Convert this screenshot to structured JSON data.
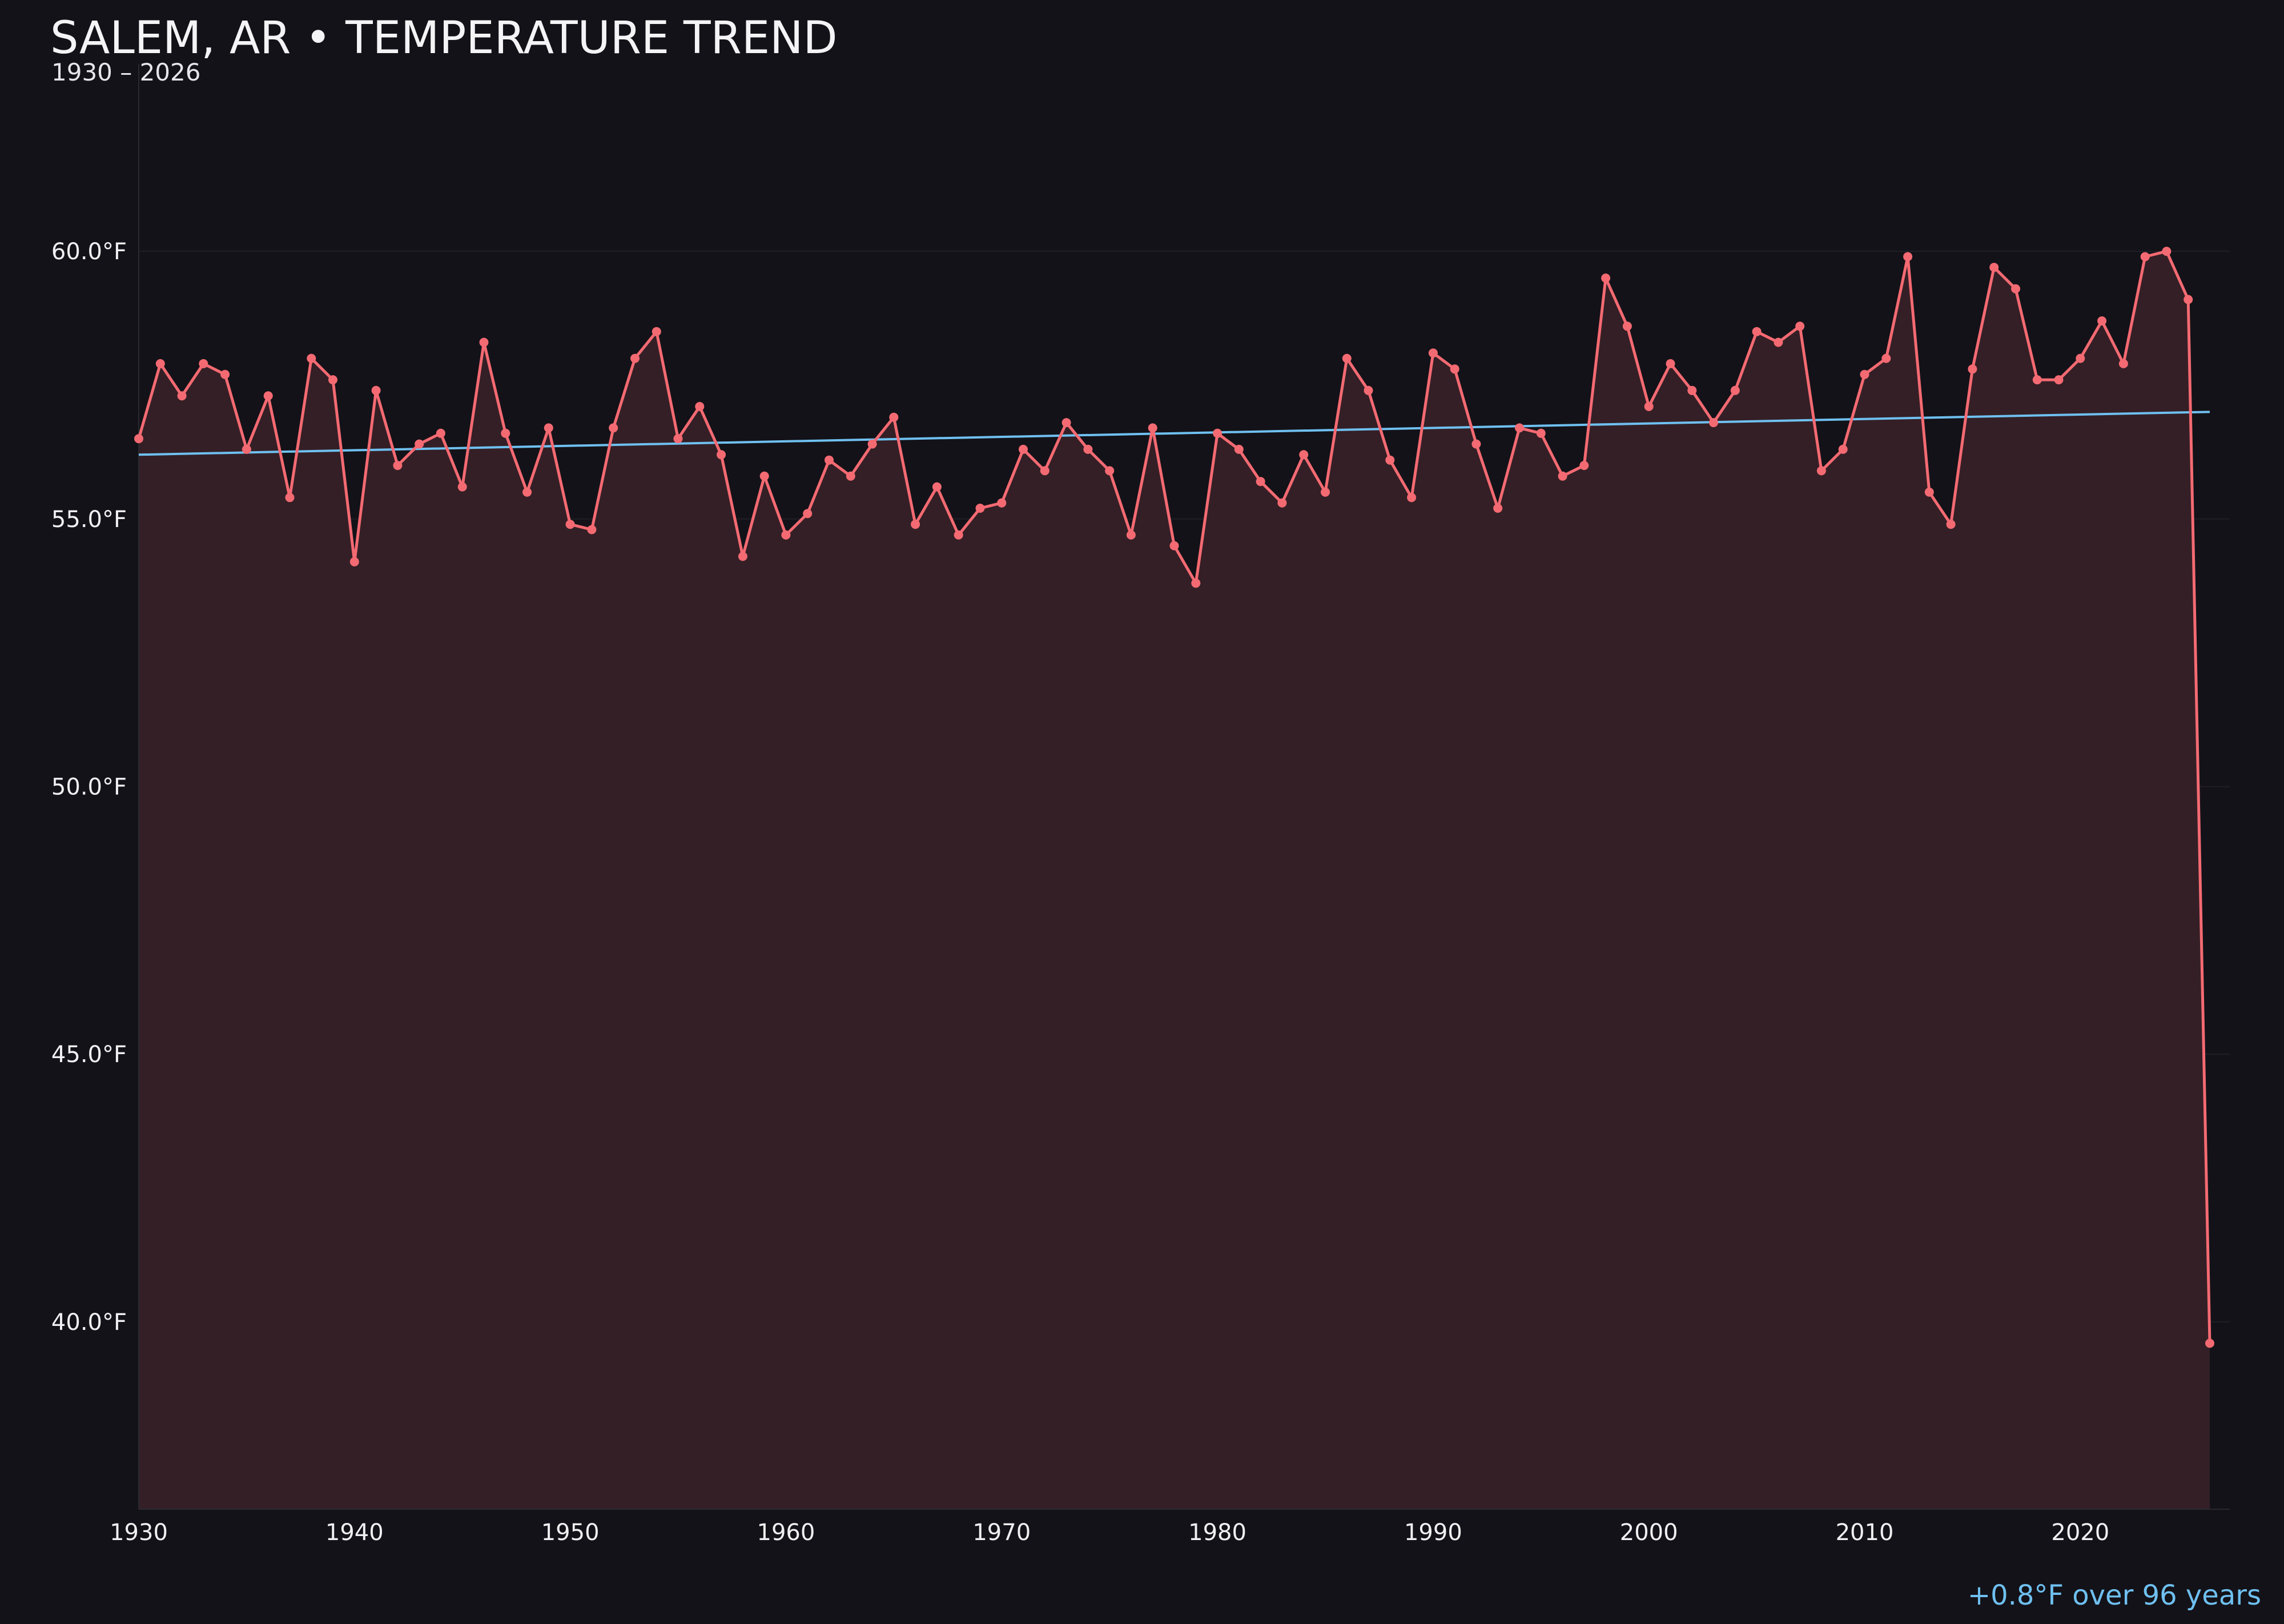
{
  "header": {
    "title": "SALEM, AR • TEMPERATURE TREND",
    "subtitle": "1930 – 2026"
  },
  "footnote": "+0.8°F over 96 years",
  "colors": {
    "background": "#131218",
    "series": "#f46a72",
    "area_fill": "#341f26",
    "trend": "#6fc0f0",
    "grid": "#201f25",
    "text": "#f0f0f2"
  },
  "chart_data": {
    "type": "line",
    "title": "SALEM, AR • TEMPERATURE TREND",
    "subtitle": "1930 – 2026",
    "xlabel": "",
    "ylabel": "",
    "xlim": [
      1930,
      2026
    ],
    "ylim": [
      36.5,
      63.5
    ],
    "x_ticks": [
      1930,
      1940,
      1950,
      1960,
      1970,
      1980,
      1990,
      2000,
      2010,
      2020
    ],
    "y_ticks": [
      40,
      45,
      50,
      55,
      60
    ],
    "y_tick_labels": [
      "40.0°F",
      "45.0°F",
      "50.0°F",
      "55.0°F",
      "60.0°F"
    ],
    "grid": "horizontal",
    "series": [
      {
        "x": [
          1930,
          1931,
          1932,
          1933,
          1934,
          1935,
          1936,
          1937,
          1938,
          1939,
          1940,
          1941,
          1942,
          1943,
          1944,
          1945,
          1946,
          1947,
          1948,
          1949,
          1950,
          1951,
          1952,
          1953,
          1954,
          1955,
          1956,
          1957,
          1958,
          1959,
          1960,
          1961,
          1962,
          1963,
          1964,
          1965,
          1966,
          1967,
          1968,
          1969,
          1970,
          1971,
          1972,
          1973,
          1974,
          1975,
          1976,
          1977,
          1978,
          1979,
          1980,
          1981,
          1982,
          1983,
          1984,
          1985,
          1986,
          1987,
          1988,
          1989,
          1990,
          1991,
          1992,
          1993,
          1994,
          1995,
          1996,
          1997,
          1998,
          1999,
          2000,
          2001,
          2002,
          2003,
          2004,
          2005,
          2006,
          2007,
          2008,
          2009,
          2010,
          2011,
          2012,
          2013,
          2014,
          2015,
          2016,
          2017,
          2018,
          2019,
          2020,
          2021,
          2022,
          2023,
          2024,
          2025,
          2026
        ],
        "values": [
          56.5,
          57.9,
          57.3,
          57.9,
          57.7,
          56.3,
          57.3,
          55.4,
          58.0,
          57.6,
          54.2,
          57.4,
          56.0,
          56.4,
          56.6,
          55.6,
          58.3,
          56.6,
          55.5,
          56.7,
          54.9,
          54.8,
          56.7,
          58.0,
          58.5,
          56.5,
          57.1,
          56.2,
          54.3,
          55.8,
          54.7,
          55.1,
          56.1,
          55.8,
          56.4,
          56.9,
          54.9,
          55.6,
          54.7,
          55.2,
          55.3,
          56.3,
          55.9,
          56.8,
          56.3,
          55.9,
          54.7,
          56.7,
          54.5,
          53.8,
          56.6,
          56.3,
          55.7,
          55.3,
          56.2,
          55.5,
          58.0,
          57.4,
          56.1,
          55.4,
          58.1,
          57.8,
          56.4,
          55.2,
          56.7,
          56.6,
          55.8,
          56.0,
          59.5,
          58.6,
          57.1,
          57.9,
          57.4,
          56.8,
          57.4,
          58.5,
          58.3,
          58.6,
          55.9,
          56.3,
          57.7,
          58.0,
          59.9,
          55.5,
          54.9,
          57.8,
          59.7,
          59.3,
          57.6,
          57.6,
          58.0,
          58.7,
          57.9,
          59.9,
          60.0,
          59.1,
          39.6
        ]
      }
    ],
    "trend": {
      "start": [
        1930,
        56.2
      ],
      "end": [
        2026,
        57.0
      ]
    }
  }
}
